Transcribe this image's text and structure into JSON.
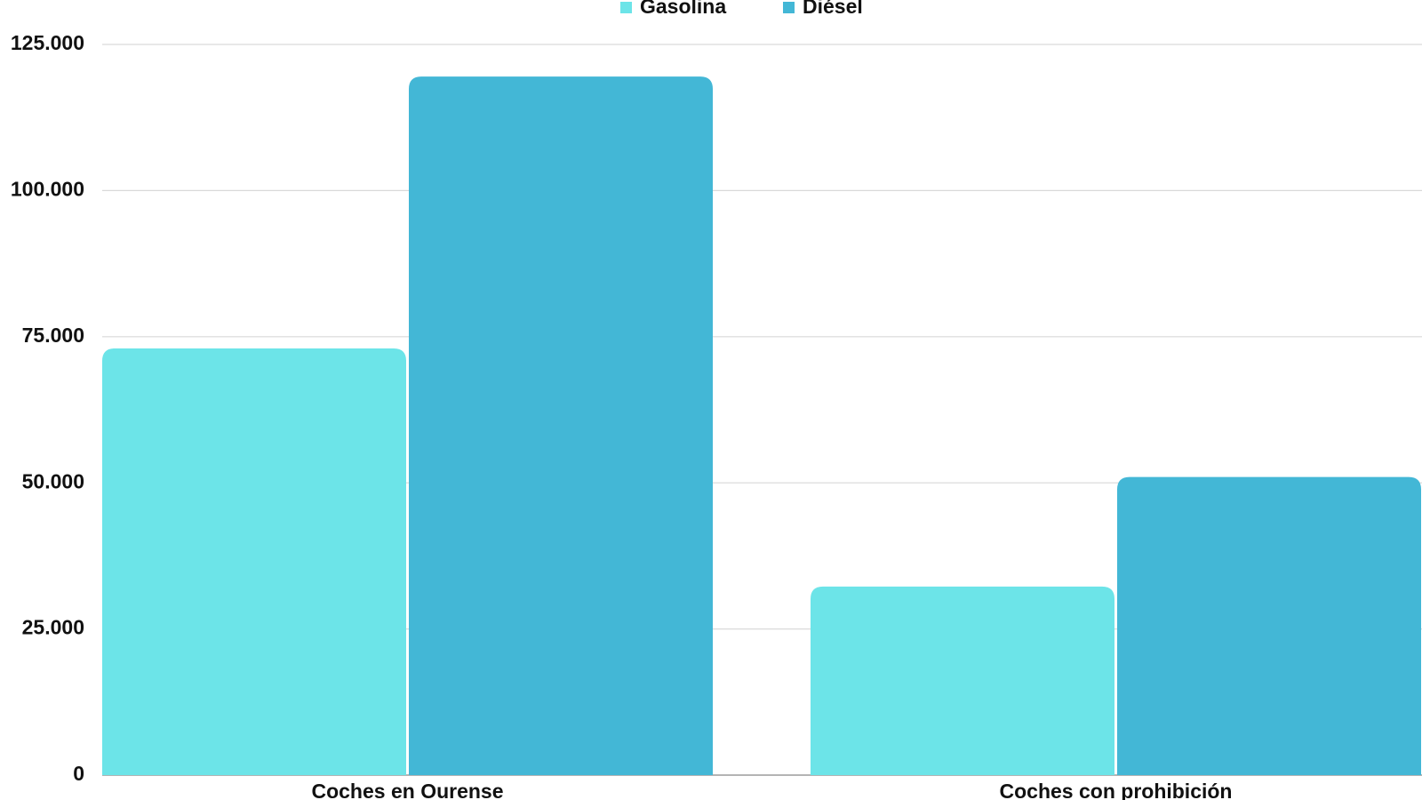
{
  "chart_data": {
    "type": "bar",
    "categories": [
      "Coches en Ourense",
      "Coches con prohibición"
    ],
    "series": [
      {
        "name": "Gasolina",
        "color": "#6ce4e8",
        "values": [
          73000,
          32250
        ]
      },
      {
        "name": "Diésel",
        "color": "#43b7d6",
        "values": [
          119500,
          51000
        ]
      }
    ],
    "ylim": [
      0,
      125000
    ],
    "yticks": [
      0,
      {
        "value": 25000,
        "label": "25.000"
      },
      {
        "value": 50000,
        "label": "50.000"
      },
      {
        "value": 75000,
        "label": "75.000"
      },
      {
        "value": 100000,
        "label": "100.000"
      },
      {
        "value": 125000,
        "label": "125.000"
      }
    ],
    "grid": true,
    "legend": "top"
  }
}
